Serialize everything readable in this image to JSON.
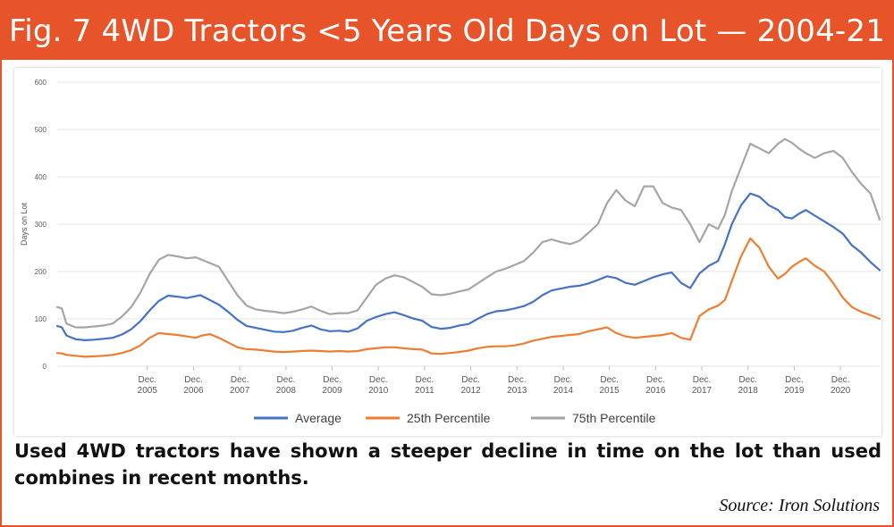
{
  "title": "Fig. 7 4WD Tractors <5 Years Old Days on Lot — 2004-21",
  "caption": "Used 4WD tractors have shown a steeper decline in time on the lot than used combines in recent months.",
  "source": "Source: Iron Solutions",
  "colors": {
    "banner": "#e8542a",
    "average": "#4472c4",
    "p25": "#ed7d31",
    "p75": "#a5a5a5"
  },
  "chart_data": {
    "type": "line",
    "title": "",
    "xlabel": "",
    "ylabel": "Days on Lot",
    "ylim": [
      0,
      600
    ],
    "yticks": [
      0,
      100,
      200,
      300,
      400,
      500,
      600
    ],
    "xlim": [
      2004.0,
      2021.8
    ],
    "xticks": [
      {
        "x": 2005.95,
        "line1": "Dec.",
        "line2": "2005"
      },
      {
        "x": 2006.95,
        "line1": "Dec.",
        "line2": "2006"
      },
      {
        "x": 2007.95,
        "line1": "Dec.",
        "line2": "2007"
      },
      {
        "x": 2008.95,
        "line1": "Dec.",
        "line2": "2008"
      },
      {
        "x": 2009.95,
        "line1": "Dec.",
        "line2": "2009"
      },
      {
        "x": 2010.95,
        "line1": "Dec.",
        "line2": "2010"
      },
      {
        "x": 2011.95,
        "line1": "Dec.",
        "line2": "2011"
      },
      {
        "x": 2012.95,
        "line1": "Dec.",
        "line2": "2012"
      },
      {
        "x": 2013.95,
        "line1": "Dec.",
        "line2": "2013"
      },
      {
        "x": 2014.95,
        "line1": "Dec.",
        "line2": "2014"
      },
      {
        "x": 2015.95,
        "line1": "Dec.",
        "line2": "2015"
      },
      {
        "x": 2016.95,
        "line1": "Dec.",
        "line2": "2016"
      },
      {
        "x": 2017.95,
        "line1": "Dec.",
        "line2": "2017"
      },
      {
        "x": 2018.95,
        "line1": "Dec.",
        "line2": "2018"
      },
      {
        "x": 2019.95,
        "line1": "Dec.",
        "line2": "2019"
      },
      {
        "x": 2020.95,
        "line1": "Dec.",
        "line2": "2020"
      }
    ],
    "grid": "horizontal",
    "legend": "bottom-center",
    "series": [
      {
        "name": "Average",
        "color": "#4472c4",
        "x": [
          2004.0,
          2004.1,
          2004.2,
          2004.4,
          2004.6,
          2004.8,
          2005.0,
          2005.2,
          2005.4,
          2005.6,
          2005.8,
          2006.0,
          2006.2,
          2006.4,
          2006.6,
          2006.8,
          2007.0,
          2007.1,
          2007.3,
          2007.5,
          2007.7,
          2007.9,
          2008.1,
          2008.3,
          2008.5,
          2008.7,
          2008.9,
          2009.1,
          2009.3,
          2009.5,
          2009.7,
          2009.9,
          2010.1,
          2010.3,
          2010.5,
          2010.7,
          2010.9,
          2011.1,
          2011.3,
          2011.5,
          2011.7,
          2011.9,
          2012.1,
          2012.3,
          2012.5,
          2012.7,
          2012.9,
          2013.1,
          2013.3,
          2013.5,
          2013.7,
          2013.9,
          2014.1,
          2014.3,
          2014.5,
          2014.7,
          2014.9,
          2015.1,
          2015.3,
          2015.5,
          2015.7,
          2015.9,
          2016.1,
          2016.3,
          2016.5,
          2016.7,
          2016.9,
          2017.1,
          2017.3,
          2017.5,
          2017.7,
          2017.9,
          2018.1,
          2018.3,
          2018.45,
          2018.6,
          2018.8,
          2019.0,
          2019.2,
          2019.4,
          2019.6,
          2019.75,
          2019.9,
          2020.05,
          2020.2,
          2020.4,
          2020.6,
          2020.8,
          2021.0,
          2021.2,
          2021.4,
          2021.6,
          2021.8
        ],
        "values": [
          85,
          82,
          65,
          57,
          55,
          56,
          58,
          60,
          67,
          78,
          95,
          118,
          138,
          149,
          147,
          144,
          148,
          150,
          140,
          130,
          115,
          98,
          85,
          81,
          77,
          73,
          72,
          75,
          81,
          86,
          78,
          74,
          75,
          73,
          80,
          96,
          104,
          110,
          114,
          108,
          101,
          96,
          83,
          79,
          81,
          86,
          89,
          100,
          110,
          116,
          118,
          122,
          127,
          136,
          150,
          160,
          164,
          168,
          170,
          175,
          182,
          190,
          186,
          176,
          172,
          180,
          188,
          194,
          198,
          176,
          165,
          196,
          212,
          222,
          258,
          300,
          340,
          365,
          358,
          340,
          330,
          315,
          312,
          322,
          330,
          318,
          306,
          294,
          280,
          255,
          240,
          220,
          203
        ]
      },
      {
        "name": "25th Percentile",
        "color": "#ed7d31",
        "x": [
          2004.0,
          2004.1,
          2004.2,
          2004.4,
          2004.6,
          2004.8,
          2005.0,
          2005.2,
          2005.4,
          2005.6,
          2005.8,
          2006.0,
          2006.2,
          2006.4,
          2006.6,
          2006.8,
          2007.0,
          2007.1,
          2007.3,
          2007.5,
          2007.7,
          2007.9,
          2008.1,
          2008.3,
          2008.5,
          2008.7,
          2008.9,
          2009.1,
          2009.3,
          2009.5,
          2009.7,
          2009.9,
          2010.1,
          2010.3,
          2010.5,
          2010.7,
          2010.9,
          2011.1,
          2011.3,
          2011.5,
          2011.7,
          2011.9,
          2012.1,
          2012.3,
          2012.5,
          2012.7,
          2012.9,
          2013.1,
          2013.3,
          2013.5,
          2013.7,
          2013.9,
          2014.1,
          2014.3,
          2014.5,
          2014.7,
          2014.9,
          2015.1,
          2015.3,
          2015.5,
          2015.7,
          2015.9,
          2016.1,
          2016.3,
          2016.5,
          2016.7,
          2016.9,
          2017.1,
          2017.3,
          2017.5,
          2017.7,
          2017.9,
          2018.1,
          2018.3,
          2018.45,
          2018.6,
          2018.8,
          2019.0,
          2019.2,
          2019.4,
          2019.6,
          2019.75,
          2019.9,
          2020.05,
          2020.2,
          2020.4,
          2020.6,
          2020.8,
          2021.0,
          2021.2,
          2021.4,
          2021.6,
          2021.8
        ],
        "values": [
          28,
          27,
          24,
          22,
          20,
          21,
          22,
          24,
          28,
          34,
          44,
          60,
          70,
          68,
          66,
          63,
          60,
          64,
          68,
          60,
          50,
          40,
          36,
          35,
          33,
          31,
          30,
          31,
          32,
          33,
          32,
          31,
          32,
          31,
          32,
          36,
          38,
          40,
          40,
          38,
          36,
          35,
          27,
          26,
          28,
          30,
          33,
          38,
          41,
          42,
          42,
          44,
          48,
          54,
          58,
          62,
          64,
          66,
          68,
          74,
          78,
          82,
          70,
          63,
          60,
          62,
          64,
          66,
          70,
          60,
          56,
          106,
          120,
          128,
          140,
          180,
          232,
          270,
          250,
          210,
          185,
          195,
          210,
          220,
          228,
          212,
          200,
          175,
          145,
          125,
          115,
          108,
          100
        ]
      },
      {
        "name": "75th Percentile",
        "color": "#a5a5a5",
        "x": [
          2004.0,
          2004.1,
          2004.2,
          2004.4,
          2004.6,
          2004.8,
          2005.0,
          2005.2,
          2005.4,
          2005.6,
          2005.8,
          2006.0,
          2006.2,
          2006.4,
          2006.6,
          2006.8,
          2007.0,
          2007.1,
          2007.3,
          2007.5,
          2007.7,
          2007.9,
          2008.1,
          2008.3,
          2008.5,
          2008.7,
          2008.9,
          2009.1,
          2009.3,
          2009.5,
          2009.7,
          2009.9,
          2010.1,
          2010.3,
          2010.5,
          2010.7,
          2010.9,
          2011.1,
          2011.3,
          2011.5,
          2011.7,
          2011.9,
          2012.1,
          2012.3,
          2012.5,
          2012.7,
          2012.9,
          2013.1,
          2013.3,
          2013.5,
          2013.7,
          2013.9,
          2014.1,
          2014.3,
          2014.5,
          2014.7,
          2014.9,
          2015.1,
          2015.3,
          2015.5,
          2015.7,
          2015.9,
          2016.1,
          2016.3,
          2016.5,
          2016.7,
          2016.9,
          2017.1,
          2017.3,
          2017.5,
          2017.7,
          2017.9,
          2018.1,
          2018.3,
          2018.45,
          2018.6,
          2018.8,
          2019.0,
          2019.2,
          2019.4,
          2019.6,
          2019.75,
          2019.9,
          2020.05,
          2020.2,
          2020.4,
          2020.6,
          2020.8,
          2021.0,
          2021.2,
          2021.4,
          2021.6,
          2021.8
        ],
        "values": [
          125,
          122,
          90,
          82,
          82,
          84,
          86,
          90,
          105,
          125,
          155,
          195,
          225,
          235,
          232,
          228,
          230,
          226,
          218,
          210,
          180,
          150,
          128,
          120,
          117,
          115,
          112,
          115,
          120,
          126,
          117,
          110,
          112,
          112,
          118,
          145,
          172,
          185,
          192,
          188,
          178,
          168,
          152,
          150,
          153,
          158,
          162,
          175,
          188,
          200,
          206,
          214,
          222,
          240,
          262,
          268,
          262,
          258,
          265,
          282,
          300,
          345,
          372,
          350,
          338,
          380,
          380,
          345,
          335,
          330,
          300,
          262,
          300,
          290,
          320,
          370,
          420,
          470,
          460,
          450,
          470,
          480,
          472,
          460,
          450,
          440,
          450,
          455,
          440,
          410,
          385,
          365,
          310
        ]
      }
    ]
  }
}
